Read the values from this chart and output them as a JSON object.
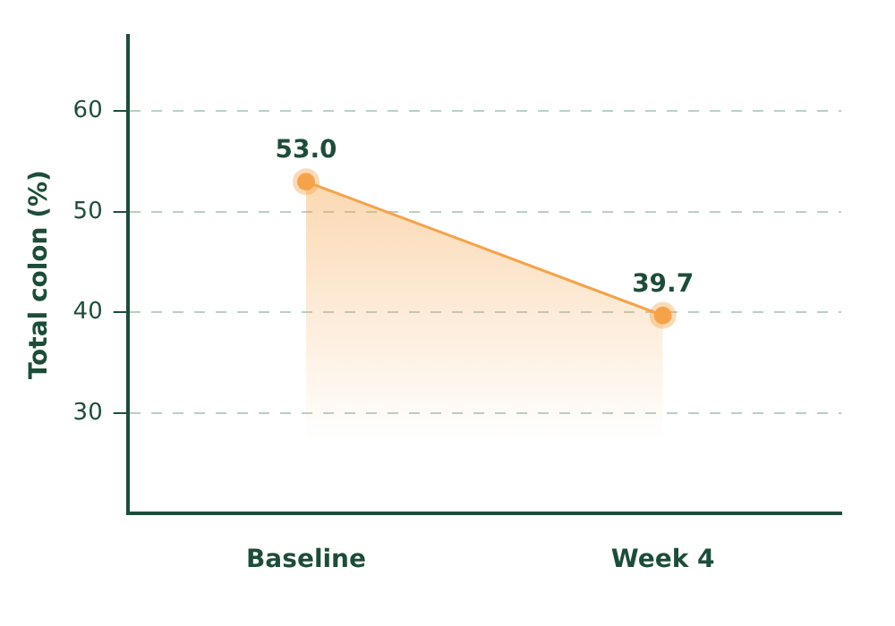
{
  "chart_data": {
    "type": "area",
    "ylabel": "Total colon (%)",
    "categories": [
      "Baseline",
      "Week 4"
    ],
    "series": [
      {
        "color": "#f5a34a",
        "values": [
          53.0,
          39.7
        ],
        "value_labels": [
          "53.0",
          "39.7"
        ]
      }
    ],
    "ylim": [
      20,
      67.5
    ],
    "yticks": [
      30,
      40,
      50,
      60
    ],
    "grid": "y",
    "marker": "circle",
    "legend": false
  }
}
